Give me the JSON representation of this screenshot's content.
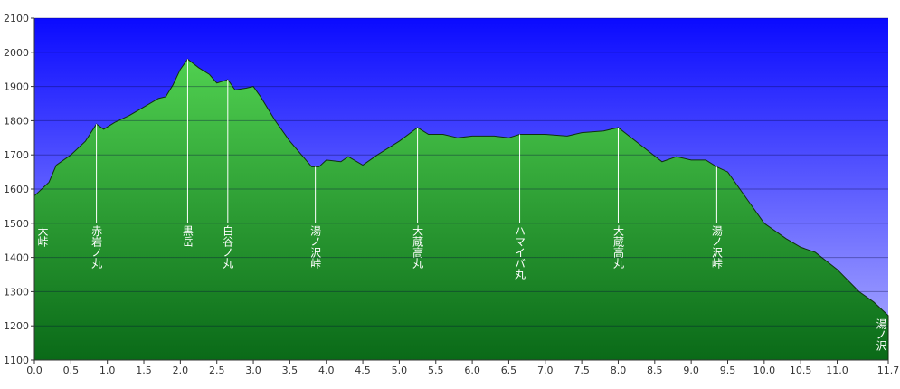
{
  "chart_data": {
    "type": "area",
    "x": [
      0,
      0.2,
      0.3,
      0.5,
      0.7,
      0.85,
      0.95,
      1.1,
      1.3,
      1.5,
      1.7,
      1.8,
      1.9,
      2.0,
      2.1,
      2.25,
      2.4,
      2.5,
      2.65,
      2.75,
      2.9,
      3.0,
      3.1,
      3.3,
      3.5,
      3.7,
      3.8,
      3.9,
      4.0,
      4.2,
      4.3,
      4.5,
      4.7,
      5.0,
      5.25,
      5.4,
      5.6,
      5.8,
      6.0,
      6.3,
      6.5,
      6.65,
      7.0,
      7.3,
      7.5,
      7.8,
      8.0,
      8.3,
      8.6,
      8.8,
      9.0,
      9.2,
      9.35,
      9.5,
      9.8,
      10.0,
      10.3,
      10.5,
      10.7,
      11.0,
      11.3,
      11.5,
      11.7
    ],
    "series": [
      {
        "color": "#2a9a2a",
        "values": [
          1580,
          1620,
          1670,
          1700,
          1740,
          1790,
          1775,
          1795,
          1815,
          1840,
          1865,
          1870,
          1905,
          1950,
          1980,
          1955,
          1935,
          1910,
          1920,
          1890,
          1895,
          1900,
          1870,
          1800,
          1740,
          1690,
          1665,
          1665,
          1685,
          1680,
          1695,
          1670,
          1700,
          1740,
          1780,
          1760,
          1760,
          1750,
          1755,
          1755,
          1750,
          1760,
          1760,
          1755,
          1765,
          1770,
          1780,
          1730,
          1680,
          1695,
          1685,
          1685,
          1665,
          1650,
          1560,
          1500,
          1455,
          1430,
          1415,
          1365,
          1300,
          1270,
          1230
        ]
      }
    ],
    "xlim": [
      0,
      11.7
    ],
    "ylim": [
      1100,
      2100
    ],
    "xticks": [
      {
        "value": 0,
        "label": "0.0"
      },
      0.5,
      {
        "value": 1,
        "label": "1.0"
      },
      1.5,
      {
        "value": 2,
        "label": "2.0"
      },
      2.5,
      {
        "value": 3,
        "label": "3.0"
      },
      3.5,
      {
        "value": 4,
        "label": "4.0"
      },
      4.5,
      {
        "value": 5,
        "label": "5.0"
      },
      5.5,
      {
        "value": 6,
        "label": "6.0"
      },
      6.5,
      {
        "value": 7,
        "label": "7.0"
      },
      7.5,
      {
        "value": 8,
        "label": "8.0"
      },
      8.5,
      {
        "value": 9,
        "label": "9.0"
      },
      9.5,
      {
        "value": 10,
        "label": "10.0"
      },
      10.5,
      {
        "value": 11,
        "label": "11.0"
      },
      11.7
    ],
    "yticks": [
      1100,
      1200,
      1300,
      1400,
      1500,
      1600,
      1700,
      1800,
      1900,
      2000,
      2100
    ],
    "grid": true,
    "annotations": [
      {
        "x": 0,
        "text": "大峠"
      },
      {
        "x": 0.85,
        "text": "赤岩ノ丸"
      },
      {
        "x": 2.1,
        "text": "黒岳"
      },
      {
        "x": 2.65,
        "text": "白谷ノ丸"
      },
      {
        "x": 3.85,
        "text": "湯ノ沢峠"
      },
      {
        "x": 5.25,
        "text": "大蔵高丸"
      },
      {
        "x": 6.65,
        "text": "ハマイバ丸"
      },
      {
        "x": 8.0,
        "text": "大蔵高丸"
      },
      {
        "x": 9.35,
        "text": "湯ノ沢峠"
      },
      {
        "x": 11.7,
        "text": "湯ノ沢"
      }
    ]
  }
}
